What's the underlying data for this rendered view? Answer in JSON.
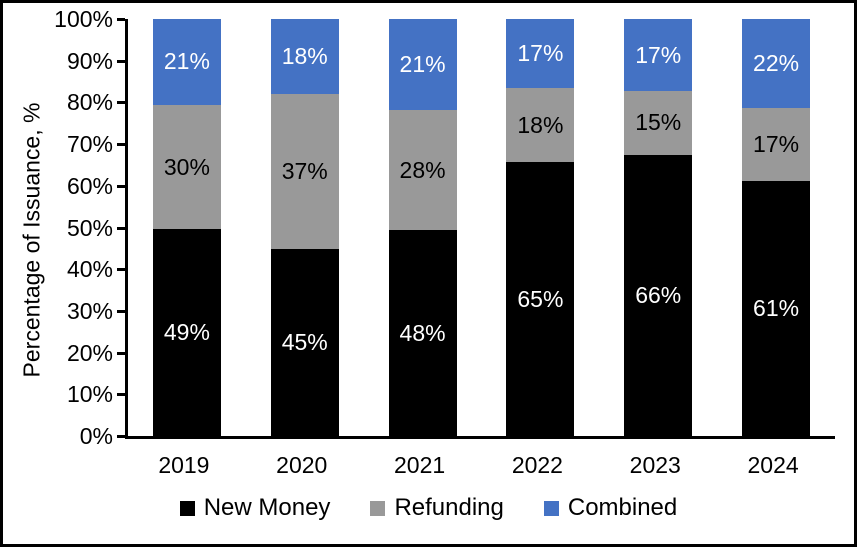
{
  "chart_data": {
    "type": "bar",
    "subtype": "stacked-100-percent-column",
    "title": "",
    "xlabel": "",
    "ylabel": "Percentage of Issuance, %",
    "categories": [
      "2019",
      "2020",
      "2021",
      "2022",
      "2023",
      "2024"
    ],
    "series": [
      {
        "name": "New Money",
        "color": "#000000",
        "label_color": "#FFFFFF",
        "values": [
          49,
          45,
          48,
          65,
          66,
          61
        ]
      },
      {
        "name": "Refunding",
        "color": "#999999",
        "label_color": "#000000",
        "values": [
          30,
          37,
          28,
          18,
          15,
          17
        ]
      },
      {
        "name": "Combined",
        "color": "#4472C4",
        "label_color": "#FFFFFF",
        "values": [
          21,
          18,
          21,
          17,
          17,
          22
        ]
      }
    ],
    "data_label_suffix": "%",
    "y_axis": {
      "min": 0,
      "max": 100,
      "tick_labels": [
        "0%",
        "10%",
        "20%",
        "30%",
        "40%",
        "50%",
        "60%",
        "70%",
        "80%",
        "90%",
        "100%"
      ]
    },
    "grid": "off",
    "legend_position": "bottom",
    "visual_segment_tops_pct": [
      [
        49.6,
        79.4,
        100
      ],
      [
        44.8,
        82.0,
        100
      ],
      [
        49.3,
        78.1,
        100
      ],
      [
        65.6,
        83.4,
        100
      ],
      [
        67.5,
        82.7,
        100
      ],
      [
        61.1,
        78.6,
        100
      ]
    ]
  }
}
